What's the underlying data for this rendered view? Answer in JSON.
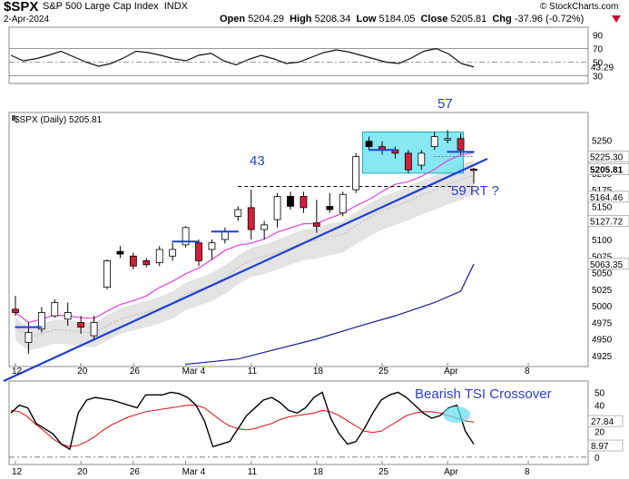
{
  "header": {
    "symbol": "$SPX",
    "name": "S&P 500 Large Cap Index",
    "exchange": "INDX",
    "date": "2-Apr-2024",
    "site": "© StockCharts.com",
    "open_label": "Open",
    "open": "5204.29",
    "high_label": "High",
    "high": "5208.34",
    "low_label": "Low",
    "low": "5184.05",
    "close_label": "Close",
    "close": "5205.81",
    "chg_label": "Chg",
    "chg": "-37.96 (-0.72%)"
  },
  "colors": {
    "up_candle": "#ffffff",
    "down_candle": "#d41f3a",
    "neutral_candle": "#000000",
    "trendline": "#1f3ed6",
    "ma_fast": "#e040e0",
    "ma_slow": "#1a1a8c",
    "band_fill": "#e3e3e3",
    "highlight_box": "#5fe0f0",
    "annotation": "#2b3ec8",
    "tsi_signal": "#e02020"
  },
  "chart_data": [
    {
      "type": "line",
      "panel": "top-oscillator",
      "y_ticks": [
        90,
        70,
        50,
        30
      ],
      "ylim": [
        20,
        100
      ],
      "reference_lines": [
        70,
        50,
        30
      ],
      "value_label": "43.29",
      "values": [
        60,
        52,
        55,
        60,
        66,
        58,
        50,
        44,
        48,
        56,
        66,
        64,
        60,
        55,
        52,
        60,
        63,
        52,
        46,
        54,
        60,
        55,
        48,
        50,
        57,
        64,
        68,
        65,
        60,
        55,
        50,
        48,
        56,
        66,
        70,
        62,
        48,
        43
      ]
    },
    {
      "type": "candlestick",
      "panel": "price",
      "legend": "$SPX (Daily) 5205.81",
      "y_ticks": [
        5250,
        5200,
        5175,
        5150,
        5125,
        5100,
        5075,
        5050,
        5025,
        5000,
        4975,
        4950,
        4925
      ],
      "ylim": [
        4910,
        5290
      ],
      "right_labels": [
        "5225.30",
        "5205.81",
        "5164.46",
        "5127.72",
        "5063.35"
      ],
      "x_tick_labels": [
        "12",
        "20",
        "26",
        "Mar 4",
        "11",
        "18",
        "25",
        "Apr",
        "8"
      ],
      "annotations": [
        "43",
        "57",
        "59 RT ?"
      ],
      "candles": [
        {
          "o": 4995,
          "h": 5015,
          "l": 4985,
          "c": 4990,
          "color": "down"
        },
        {
          "o": 4945,
          "h": 4975,
          "l": 4928,
          "c": 4960,
          "color": "up"
        },
        {
          "o": 4965,
          "h": 4998,
          "l": 4960,
          "c": 4990,
          "color": "up"
        },
        {
          "o": 4985,
          "h": 5010,
          "l": 4982,
          "c": 5005,
          "color": "up"
        },
        {
          "o": 4990,
          "h": 5005,
          "l": 4970,
          "c": 4980,
          "color": "up"
        },
        {
          "o": 4975,
          "h": 4985,
          "l": 4958,
          "c": 4968,
          "color": "down"
        },
        {
          "o": 4955,
          "h": 4985,
          "l": 4948,
          "c": 4975,
          "color": "up"
        },
        {
          "o": 5028,
          "h": 5070,
          "l": 5025,
          "c": 5068,
          "color": "up"
        },
        {
          "o": 5078,
          "h": 5090,
          "l": 5072,
          "c": 5082,
          "color": "neutral"
        },
        {
          "o": 5075,
          "h": 5080,
          "l": 5055,
          "c": 5060,
          "color": "down"
        },
        {
          "o": 5068,
          "h": 5072,
          "l": 5058,
          "c": 5062,
          "color": "down"
        },
        {
          "o": 5065,
          "h": 5090,
          "l": 5060,
          "c": 5085,
          "color": "up"
        },
        {
          "o": 5075,
          "h": 5095,
          "l": 5068,
          "c": 5085,
          "color": "up"
        },
        {
          "o": 5092,
          "h": 5120,
          "l": 5088,
          "c": 5118,
          "color": "up"
        },
        {
          "o": 5095,
          "h": 5100,
          "l": 5060,
          "c": 5068,
          "color": "down"
        },
        {
          "o": 5085,
          "h": 5100,
          "l": 5070,
          "c": 5095,
          "color": "up"
        },
        {
          "o": 5100,
          "h": 5118,
          "l": 5094,
          "c": 5112,
          "color": "up"
        },
        {
          "o": 5135,
          "h": 5150,
          "l": 5128,
          "c": 5145,
          "color": "up"
        },
        {
          "o": 5148,
          "h": 5175,
          "l": 5100,
          "c": 5115,
          "color": "down"
        },
        {
          "o": 5115,
          "h": 5128,
          "l": 5100,
          "c": 5122,
          "color": "up"
        },
        {
          "o": 5130,
          "h": 5170,
          "l": 5118,
          "c": 5165,
          "color": "up"
        },
        {
          "o": 5165,
          "h": 5172,
          "l": 5145,
          "c": 5150,
          "color": "neutral"
        },
        {
          "o": 5165,
          "h": 5172,
          "l": 5140,
          "c": 5148,
          "color": "down"
        },
        {
          "o": 5125,
          "h": 5160,
          "l": 5110,
          "c": 5120,
          "color": "down"
        },
        {
          "o": 5145,
          "h": 5170,
          "l": 5140,
          "c": 5150,
          "color": "neutral"
        },
        {
          "o": 5140,
          "h": 5172,
          "l": 5135,
          "c": 5168,
          "color": "up"
        },
        {
          "o": 5175,
          "h": 5230,
          "l": 5170,
          "c": 5225,
          "color": "up"
        },
        {
          "o": 5248,
          "h": 5255,
          "l": 5235,
          "c": 5240,
          "color": "neutral"
        },
        {
          "o": 5240,
          "h": 5248,
          "l": 5228,
          "c": 5235,
          "color": "down"
        },
        {
          "o": 5235,
          "h": 5240,
          "l": 5222,
          "c": 5230,
          "color": "down"
        },
        {
          "o": 5230,
          "h": 5235,
          "l": 5200,
          "c": 5205,
          "color": "down"
        },
        {
          "o": 5212,
          "h": 5235,
          "l": 5205,
          "c": 5230,
          "color": "up"
        },
        {
          "o": 5240,
          "h": 5262,
          "l": 5235,
          "c": 5255,
          "color": "up"
        },
        {
          "o": 5252,
          "h": 5265,
          "l": 5245,
          "c": 5250,
          "color": "up"
        },
        {
          "o": 5252,
          "h": 5260,
          "l": 5228,
          "c": 5235,
          "color": "down"
        },
        {
          "o": 5204,
          "h": 5208,
          "l": 5184,
          "c": 5206,
          "color": "down"
        }
      ]
    },
    {
      "type": "line",
      "panel": "TSI",
      "legend": "Bearish TSI Crossover",
      "y_ticks": [
        50,
        40,
        20,
        10,
        0
      ],
      "ylim": [
        -5,
        58
      ],
      "right_labels": [
        "27.84",
        "8.97"
      ],
      "tsi": [
        34,
        40,
        38,
        26,
        22,
        18,
        10,
        6,
        34,
        44,
        46,
        45,
        44,
        42,
        40,
        38,
        48,
        48,
        48,
        50,
        49,
        46,
        40,
        28,
        8,
        10,
        12,
        22,
        32,
        38,
        44,
        46,
        42,
        36,
        34,
        38,
        46,
        50,
        30,
        18,
        10,
        12,
        22,
        34,
        44,
        48,
        50,
        46,
        40,
        34,
        30,
        32,
        38,
        40,
        20,
        10
      ],
      "signal": [
        36,
        35,
        31,
        25,
        20,
        14,
        10,
        8,
        9,
        12,
        16,
        21,
        25,
        28,
        31,
        33,
        35,
        36,
        37,
        38,
        39,
        40,
        40,
        38,
        33,
        28,
        24,
        22,
        21,
        22,
        24,
        26,
        29,
        31,
        32,
        33,
        34,
        36,
        35,
        32,
        28,
        24,
        20,
        19,
        20,
        24,
        28,
        32,
        34,
        35,
        35,
        34,
        32,
        30,
        28,
        27
      ]
    }
  ]
}
